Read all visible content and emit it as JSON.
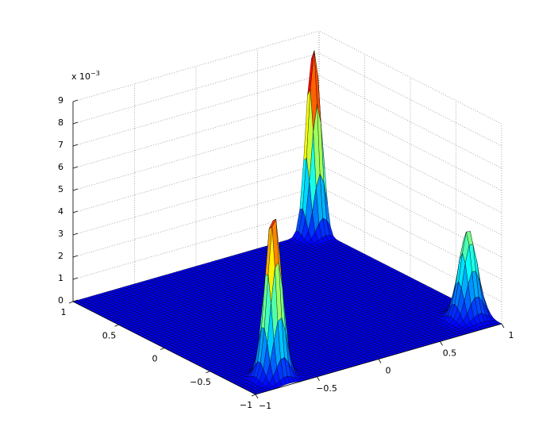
{
  "chart_data": {
    "type": "surface3d",
    "z_scale_label": "x 10",
    "z_scale_exponent": "−3",
    "xlim": [
      -1,
      1
    ],
    "ylim": [
      -1,
      1
    ],
    "zlim": [
      0,
      9
    ],
    "xticks": [
      {
        "value": -1,
        "label": "−1"
      },
      {
        "value": -0.5,
        "label": "−0.5"
      },
      0,
      0.5,
      1
    ],
    "yticks": [
      {
        "value": -1,
        "label": "−1"
      },
      {
        "value": -0.5,
        "label": "−0.5"
      },
      0,
      0.5,
      1
    ],
    "zticks": [
      0,
      1,
      2,
      3,
      4,
      5,
      6,
      7,
      8,
      9
    ],
    "grid": true,
    "colormap": "jet",
    "edge_color": "#000000",
    "peaks": [
      {
        "x": -0.73,
        "y": -0.83,
        "height": 7.5,
        "sigma": 0.055
      },
      {
        "x": 0.94,
        "y": 0.98,
        "height": 8.5,
        "sigma": 0.05
      },
      {
        "x": 0.89,
        "y": -0.78,
        "height": 4.0,
        "sigma": 0.06
      }
    ]
  }
}
